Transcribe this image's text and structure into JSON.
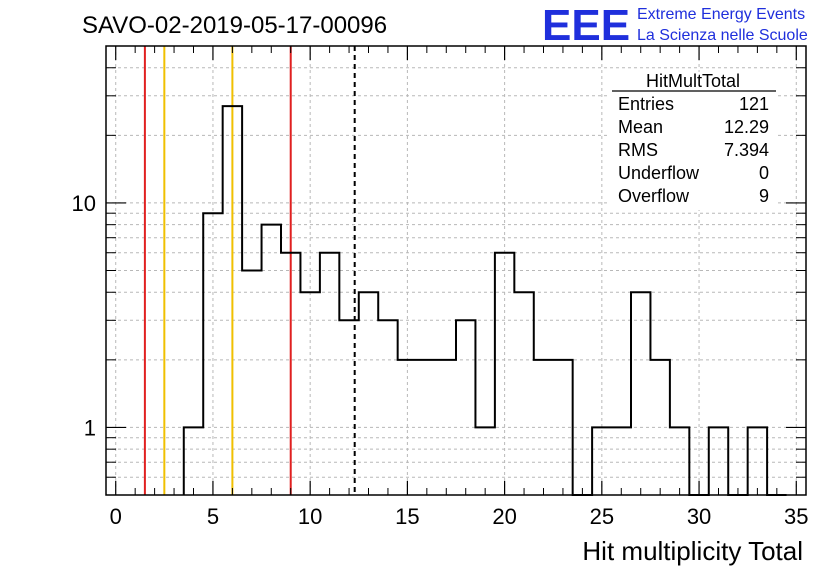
{
  "chart_data": {
    "type": "bar",
    "title": "SAVO-02-2019-05-17-00096",
    "xlabel": "Hit multiplicity Total",
    "ylabel": "",
    "x_scale": "linear",
    "y_scale": "log",
    "xlim": [
      -0.5,
      35.5
    ],
    "ylim": [
      0.5,
      50
    ],
    "grid": true,
    "histogram": true,
    "bin_width": 1,
    "bin_low_edges": [
      3.5,
      4.5,
      5.5,
      6.5,
      7.5,
      8.5,
      9.5,
      10.5,
      11.5,
      12.5,
      13.5,
      14.5,
      15.5,
      16.5,
      17.5,
      18.5,
      19.5,
      20.5,
      21.5,
      22.5,
      23.5,
      24.5,
      25.5,
      26.5,
      27.5,
      28.5,
      29.5,
      30.5,
      31.5,
      32.5,
      33.5
    ],
    "values": [
      1,
      9,
      27,
      5,
      8,
      6,
      4,
      6,
      3,
      4,
      3,
      2,
      2,
      2,
      3,
      1,
      6,
      4,
      2,
      2,
      0,
      1,
      1,
      4,
      2,
      1,
      0,
      1,
      0,
      1,
      0
    ],
    "x_ticks": [
      0,
      5,
      10,
      15,
      20,
      25,
      30,
      35
    ],
    "y_ticks": [
      {
        "value": 1,
        "label": "1"
      },
      {
        "value": 10,
        "label": "10"
      }
    ],
    "vertical_lines": [
      {
        "x": 1.5,
        "color": "#e02020",
        "style": "solid"
      },
      {
        "x": 2.5,
        "color": "#f0c000",
        "style": "solid"
      },
      {
        "x": 6.0,
        "color": "#f0c000",
        "style": "solid"
      },
      {
        "x": 9.0,
        "color": "#e02020",
        "style": "solid"
      },
      {
        "x": 12.29,
        "color": "#000000",
        "style": "dashed"
      }
    ],
    "stats_box": {
      "name": "HitMultTotal",
      "rows": [
        {
          "label": "Entries",
          "value": "121"
        },
        {
          "label": "Mean",
          "value": "12.29"
        },
        {
          "label": "RMS",
          "value": "7.394"
        },
        {
          "label": "Underflow",
          "value": "0"
        },
        {
          "label": "Overflow",
          "value": "9"
        }
      ]
    }
  },
  "logo": {
    "mark": "EEE",
    "line1": "Extreme Energy Events",
    "line2": "La Scienza nelle Scuole",
    "color": "#1f2fdc"
  }
}
